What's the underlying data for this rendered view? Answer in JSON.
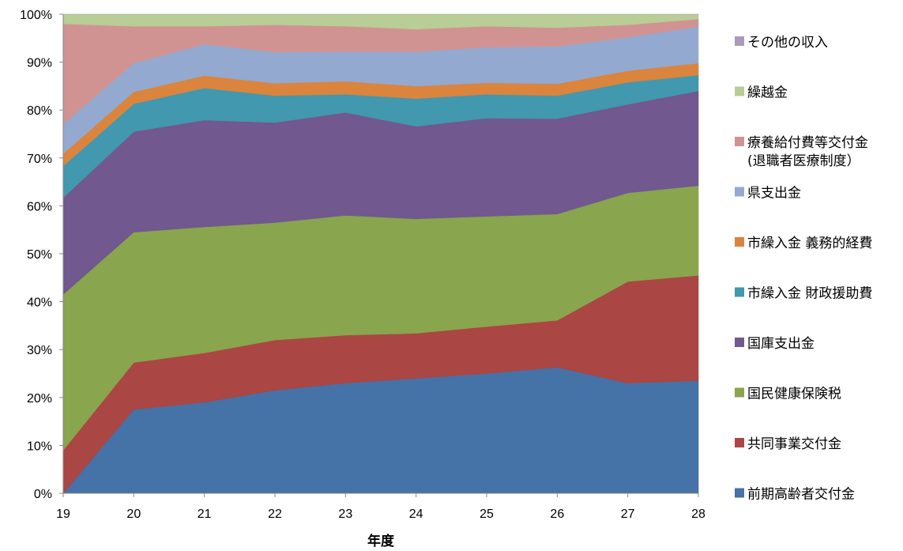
{
  "chart_data": {
    "type": "area",
    "stacked_percent": true,
    "categories": [
      "19",
      "20",
      "21",
      "22",
      "23",
      "24",
      "25",
      "26",
      "27",
      "28"
    ],
    "xlabel": "年度",
    "ylabel": "",
    "ylim": [
      0,
      100
    ],
    "yticks": [
      "0%",
      "10%",
      "20%",
      "30%",
      "40%",
      "50%",
      "60%",
      "70%",
      "80%",
      "90%",
      "100%"
    ],
    "legend_position": "right",
    "series": [
      {
        "name": "前期高齢者交付金",
        "color": "#4572a7",
        "values": [
          0,
          17.5,
          19,
          21.5,
          23,
          24,
          25,
          26.3,
          23,
          23.5
        ]
      },
      {
        "name": "共同事業交付金",
        "color": "#aa4643",
        "values": [
          9,
          9.8,
          10.3,
          10.5,
          10,
          9.4,
          9.8,
          9.8,
          21.2,
          22
        ]
      },
      {
        "name": "国民健康保険税",
        "color": "#89a54e",
        "values": [
          32.5,
          27.2,
          26.3,
          24.5,
          25,
          23.9,
          23,
          22.2,
          18.5,
          18.7
        ]
      },
      {
        "name": "国庫支出金",
        "color": "#71588f",
        "values": [
          20.2,
          21,
          22.3,
          20.9,
          21.5,
          19.3,
          20.5,
          19.9,
          18.5,
          19.8
        ]
      },
      {
        "name": "市繰入金 財政援助費",
        "color": "#4198af",
        "values": [
          6.6,
          5.8,
          6.7,
          5.6,
          3.8,
          5.8,
          5,
          4.8,
          4.6,
          3.3
        ]
      },
      {
        "name": "市繰入金 義務的経費",
        "color": "#db843d",
        "values": [
          2.6,
          2.5,
          2.6,
          2.6,
          2.7,
          2.6,
          2.4,
          2.5,
          2.4,
          2.5
        ]
      },
      {
        "name": "県支出金",
        "color": "#93a9cf",
        "values": [
          6.2,
          6,
          6.6,
          6.5,
          6.2,
          7.2,
          7.4,
          7.8,
          7,
          7.6
        ]
      },
      {
        "name": "療養給付費等交付金\n(退職者医療制度）",
        "color": "#d19392",
        "values": [
          20.9,
          7.7,
          3.7,
          5.7,
          5.3,
          4.7,
          4.4,
          3.9,
          2.6,
          1.6
        ]
      },
      {
        "name": "繰越金",
        "color": "#b9cd96",
        "values": [
          2,
          2.5,
          2.5,
          2.2,
          2.5,
          3.1,
          2.5,
          2.8,
          2.2,
          1
        ]
      },
      {
        "name": "その他の収入",
        "color": "#a99bbd",
        "values": [
          0,
          0,
          0,
          0,
          0,
          0,
          0,
          0,
          0,
          0
        ]
      }
    ]
  }
}
